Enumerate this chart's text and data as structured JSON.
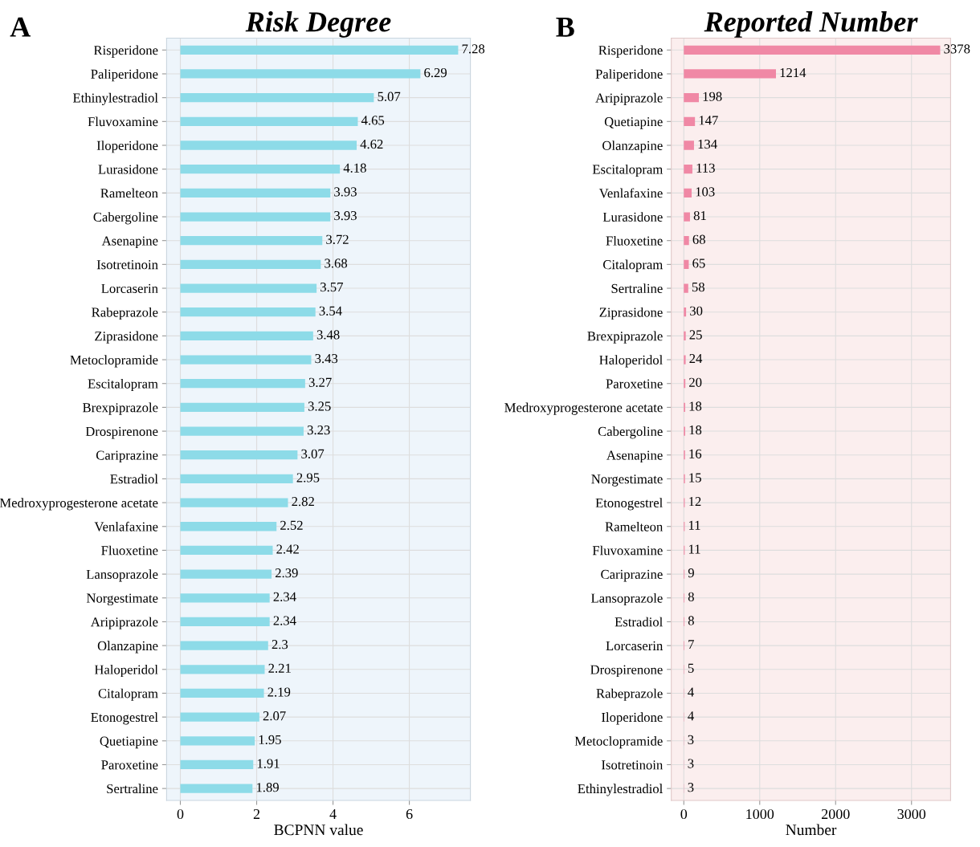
{
  "chart_data": [
    {
      "type": "bar",
      "orientation": "horizontal",
      "title": "Risk Degree",
      "xlabel": "BCPNN value",
      "annotations": [
        "A"
      ],
      "grid": true,
      "data_labels": true,
      "color": "#8ddbe8",
      "categories": [
        "Risperidone",
        "Paliperidone",
        "Ethinylestradiol",
        "Fluvoxamine",
        "Iloperidone",
        "Lurasidone",
        "Ramelteon",
        "Cabergoline",
        "Asenapine",
        "Isotretinoin",
        "Lorcaserin",
        "Rabeprazole",
        "Ziprasidone",
        "Metoclopramide",
        "Escitalopram",
        "Brexpiprazole",
        "Drospirenone",
        "Cariprazine",
        "Estradiol",
        "Medroxyprogesterone acetate",
        "Venlafaxine",
        "Fluoxetine",
        "Lansoprazole",
        "Norgestimate",
        "Aripiprazole",
        "Olanzapine",
        "Haloperidol",
        "Citalopram",
        "Etonogestrel",
        "Quetiapine",
        "Paroxetine",
        "Sertraline"
      ],
      "values": [
        7.28,
        6.29,
        5.07,
        4.65,
        4.62,
        4.18,
        3.93,
        3.93,
        3.72,
        3.68,
        3.57,
        3.54,
        3.48,
        3.43,
        3.27,
        3.25,
        3.23,
        3.07,
        2.95,
        2.82,
        2.52,
        2.42,
        2.39,
        2.34,
        2.34,
        2.3,
        2.21,
        2.19,
        2.07,
        1.95,
        1.91,
        1.89
      ],
      "xlim": [
        -0.36,
        7.6
      ],
      "xticks": [
        0,
        2,
        4,
        6
      ]
    },
    {
      "type": "bar",
      "orientation": "horizontal",
      "title": "Reported Number",
      "xlabel": "Number",
      "annotations": [
        "B"
      ],
      "grid": true,
      "data_labels": true,
      "color": "#f088a5",
      "categories": [
        "Risperidone",
        "Paliperidone",
        "Aripiprazole",
        "Quetiapine",
        "Olanzapine",
        "Escitalopram",
        "Venlafaxine",
        "Lurasidone",
        "Fluoxetine",
        "Citalopram",
        "Sertraline",
        "Ziprasidone",
        "Brexpiprazole",
        "Haloperidol",
        "Paroxetine",
        "Medroxyprogesterone acetate",
        "Cabergoline",
        "Asenapine",
        "Norgestimate",
        "Etonogestrel",
        "Ramelteon",
        "Fluvoxamine",
        "Cariprazine",
        "Lansoprazole",
        "Estradiol",
        "Lorcaserin",
        "Drospirenone",
        "Rabeprazole",
        "Iloperidone",
        "Metoclopramide",
        "Isotretinoin",
        "Ethinylestradiol"
      ],
      "values": [
        3378,
        1214,
        198,
        147,
        134,
        113,
        103,
        81,
        68,
        65,
        58,
        30,
        25,
        24,
        20,
        18,
        18,
        16,
        15,
        12,
        11,
        11,
        9,
        8,
        8,
        7,
        5,
        4,
        4,
        3,
        3,
        3
      ],
      "xlim": [
        -165,
        3515
      ],
      "xticks": [
        0,
        1000,
        2000,
        3000
      ]
    }
  ]
}
